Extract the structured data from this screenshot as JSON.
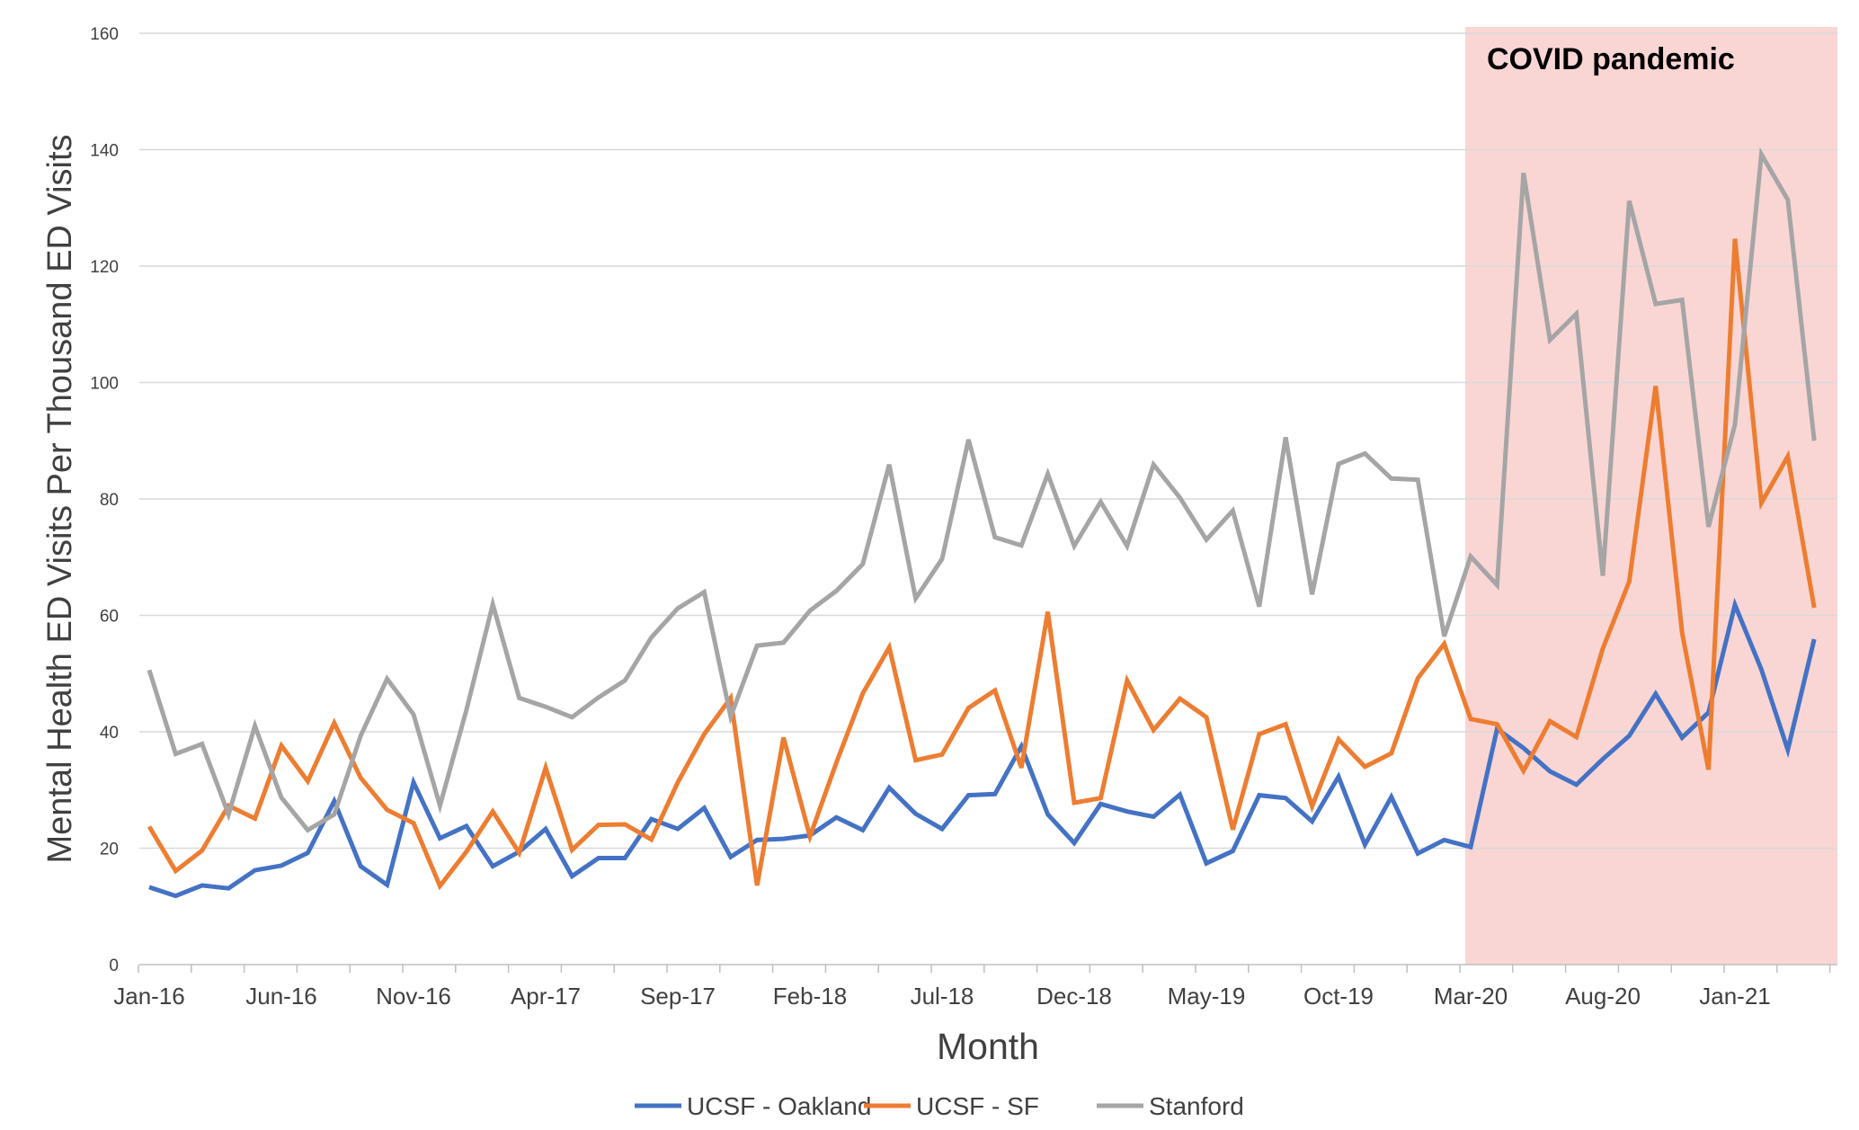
{
  "chart_data": {
    "type": "line",
    "title": "",
    "xlabel": "Month",
    "ylabel": "Mental Health ED Visits Per Thousand ED Visits",
    "ylim": [
      0,
      160
    ],
    "yticks": [
      0,
      20,
      40,
      60,
      80,
      100,
      120,
      140,
      160
    ],
    "grid": true,
    "legend_position": "bottom",
    "x_tick_labels": [
      "Jan-16",
      "Jun-16",
      "Nov-16",
      "Apr-17",
      "Sep-17",
      "Feb-18",
      "Jul-18",
      "Dec-18",
      "May-19",
      "Oct-19",
      "Mar-20",
      "Aug-20",
      "Jan-21"
    ],
    "x_tick_start_month": 0,
    "x_tick_step": 5,
    "annotation": {
      "label": "COVID pandemic",
      "start": "Mar-20",
      "color": "#f9d6d4"
    },
    "series": [
      {
        "name": "UCSF - Oakland",
        "color": "#4472c4",
        "values": [
          13.3,
          11.8,
          13.6,
          13.1,
          16.2,
          17.0,
          19.2,
          28.1,
          16.9,
          13.7,
          31.3,
          21.7,
          23.8,
          16.9,
          19.4,
          23.3,
          15.2,
          18.3,
          18.3,
          25.0,
          23.3,
          26.9,
          18.5,
          21.4,
          21.6,
          22.2,
          25.3,
          23.1,
          30.4,
          25.9,
          23.3,
          29.1,
          29.3,
          37.5,
          25.8,
          20.9,
          27.6,
          26.3,
          25.4,
          29.2,
          17.4,
          19.5,
          29.1,
          28.6,
          24.6,
          32.3,
          20.6,
          28.8,
          19.1,
          21.4,
          20.2,
          40.5,
          37.2,
          33.2,
          30.9,
          35.3,
          39.3,
          46.5,
          39.0,
          43.3,
          61.8,
          50.7,
          36.9,
          55.9
        ]
      },
      {
        "name": "UCSF - SF",
        "color": "#ed7d31",
        "values": [
          23.7,
          16.1,
          19.6,
          27.3,
          25.1,
          37.6,
          31.5,
          41.5,
          32.1,
          26.6,
          24.3,
          13.5,
          19.4,
          26.3,
          19.2,
          33.8,
          19.7,
          24.0,
          24.1,
          21.5,
          31.3,
          39.6,
          45.8,
          13.6,
          39.0,
          22.0,
          34.7,
          46.6,
          54.5,
          35.1,
          36.1,
          44.1,
          47.1,
          33.8,
          60.6,
          27.8,
          28.6,
          48.8,
          40.3,
          45.7,
          42.5,
          23.2,
          39.6,
          41.3,
          27.2,
          38.7,
          34.0,
          36.3,
          49.2,
          55.1,
          42.2,
          41.3,
          33.3,
          41.8,
          39.1,
          54.3,
          65.8,
          99.4,
          57.0,
          33.5,
          124.7,
          79.3,
          87.3,
          61.3
        ]
      },
      {
        "name": "Stanford",
        "color": "#a5a5a5",
        "values": [
          50.6,
          36.2,
          37.9,
          25.8,
          41.0,
          28.7,
          23.1,
          25.8,
          39.3,
          49.1,
          43.0,
          27.3,
          43.7,
          61.9,
          45.8,
          44.3,
          42.5,
          45.9,
          48.8,
          56.2,
          61.2,
          64.0,
          42.6,
          54.8,
          55.3,
          60.8,
          64.2,
          68.8,
          85.9,
          62.9,
          69.7,
          90.2,
          73.4,
          72.0,
          84.3,
          71.9,
          79.5,
          71.9,
          85.9,
          80.2,
          73.0,
          78.0,
          61.5,
          90.6,
          63.6,
          86.0,
          87.8,
          83.5,
          83.3,
          56.4,
          70.1,
          65.2,
          136.0,
          107.3,
          111.8,
          66.8,
          131.2,
          113.5,
          114.2,
          75.2,
          92.8,
          139.2,
          131.4,
          90.0
        ]
      }
    ]
  }
}
